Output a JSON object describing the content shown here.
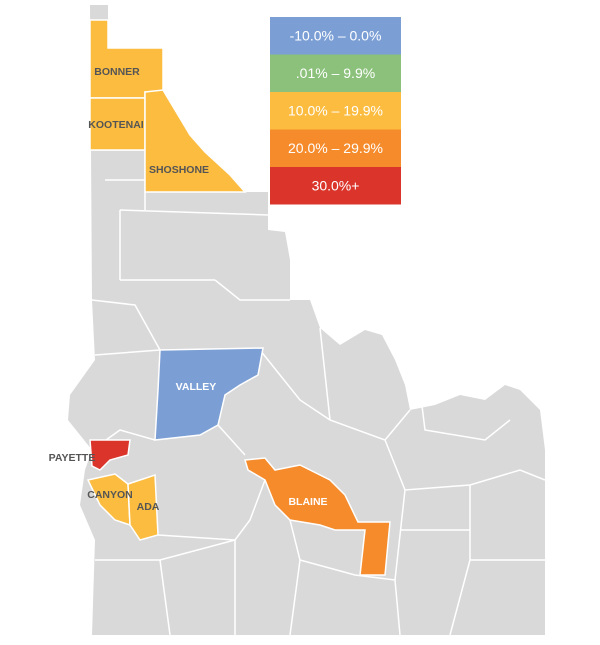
{
  "legend": [
    {
      "label": "-10.0% – 0.0%",
      "color": "#7b9fd5"
    },
    {
      "label": ".01% – 9.9%",
      "color": "#8bc17b"
    },
    {
      "label": "10.0% – 19.9%",
      "color": "#fbbc40"
    },
    {
      "label": "20.0% – 29.9%",
      "color": "#f58b2b"
    },
    {
      "label": "30.0%+",
      "color": "#da342b"
    }
  ],
  "counties": [
    {
      "label": "BONNER",
      "color": "#fbbc40"
    },
    {
      "label": "KOOTENAI",
      "color": "#fbbc40"
    },
    {
      "label": "SHOSHONE",
      "color": "#fbbc40"
    },
    {
      "label": "VALLEY",
      "color": "#7b9fd5"
    },
    {
      "label": "PAYETTE",
      "color": "#da342b"
    },
    {
      "label": "CANYON",
      "color": "#fbbc40"
    },
    {
      "label": "ADA",
      "color": "#fbbc40"
    },
    {
      "label": "BLAINE",
      "color": "#f58b2b"
    }
  ]
}
